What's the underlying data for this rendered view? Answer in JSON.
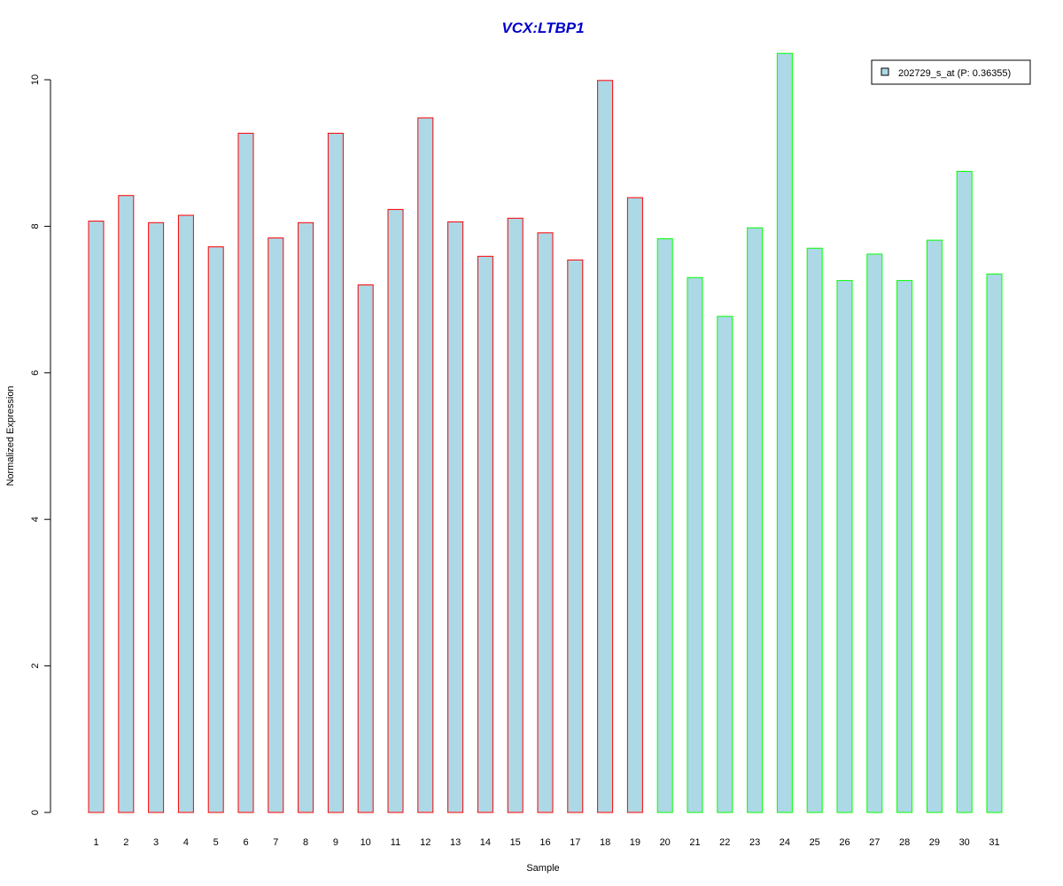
{
  "chart_data": {
    "type": "bar",
    "title": "VCX:LTBP1",
    "xlabel": "Sample",
    "ylabel": "Normalized Expression",
    "ylim": [
      0,
      10.4
    ],
    "yticks": [
      0,
      2,
      4,
      6,
      8,
      10
    ],
    "grid": false,
    "legend_position": "top-right",
    "categories": [
      "1",
      "2",
      "3",
      "4",
      "5",
      "6",
      "7",
      "8",
      "9",
      "10",
      "11",
      "12",
      "13",
      "14",
      "15",
      "16",
      "17",
      "18",
      "19",
      "20",
      "21",
      "22",
      "23",
      "24",
      "25",
      "26",
      "27",
      "28",
      "29",
      "30",
      "31"
    ],
    "series": [
      {
        "name": "202729_s_at (P: 0.36355)",
        "values": [
          8.07,
          8.42,
          8.05,
          8.15,
          7.72,
          9.27,
          7.84,
          8.05,
          9.27,
          7.2,
          8.23,
          9.48,
          8.06,
          7.59,
          8.11,
          7.91,
          7.54,
          9.99,
          8.39,
          7.83,
          7.3,
          6.77,
          7.98,
          10.36,
          7.7,
          7.26,
          7.62,
          7.26,
          7.81,
          8.75,
          7.35
        ],
        "fill": "#add8e6"
      }
    ],
    "group_border_colors": {
      "group1": {
        "range": [
          1,
          19
        ],
        "color": "#ff0000"
      },
      "group2": {
        "range": [
          20,
          31
        ],
        "color": "#00ff00"
      }
    },
    "colors": {
      "title": "#0000cc",
      "axis": "#000000",
      "legend_swatch": "#add8e6"
    }
  }
}
